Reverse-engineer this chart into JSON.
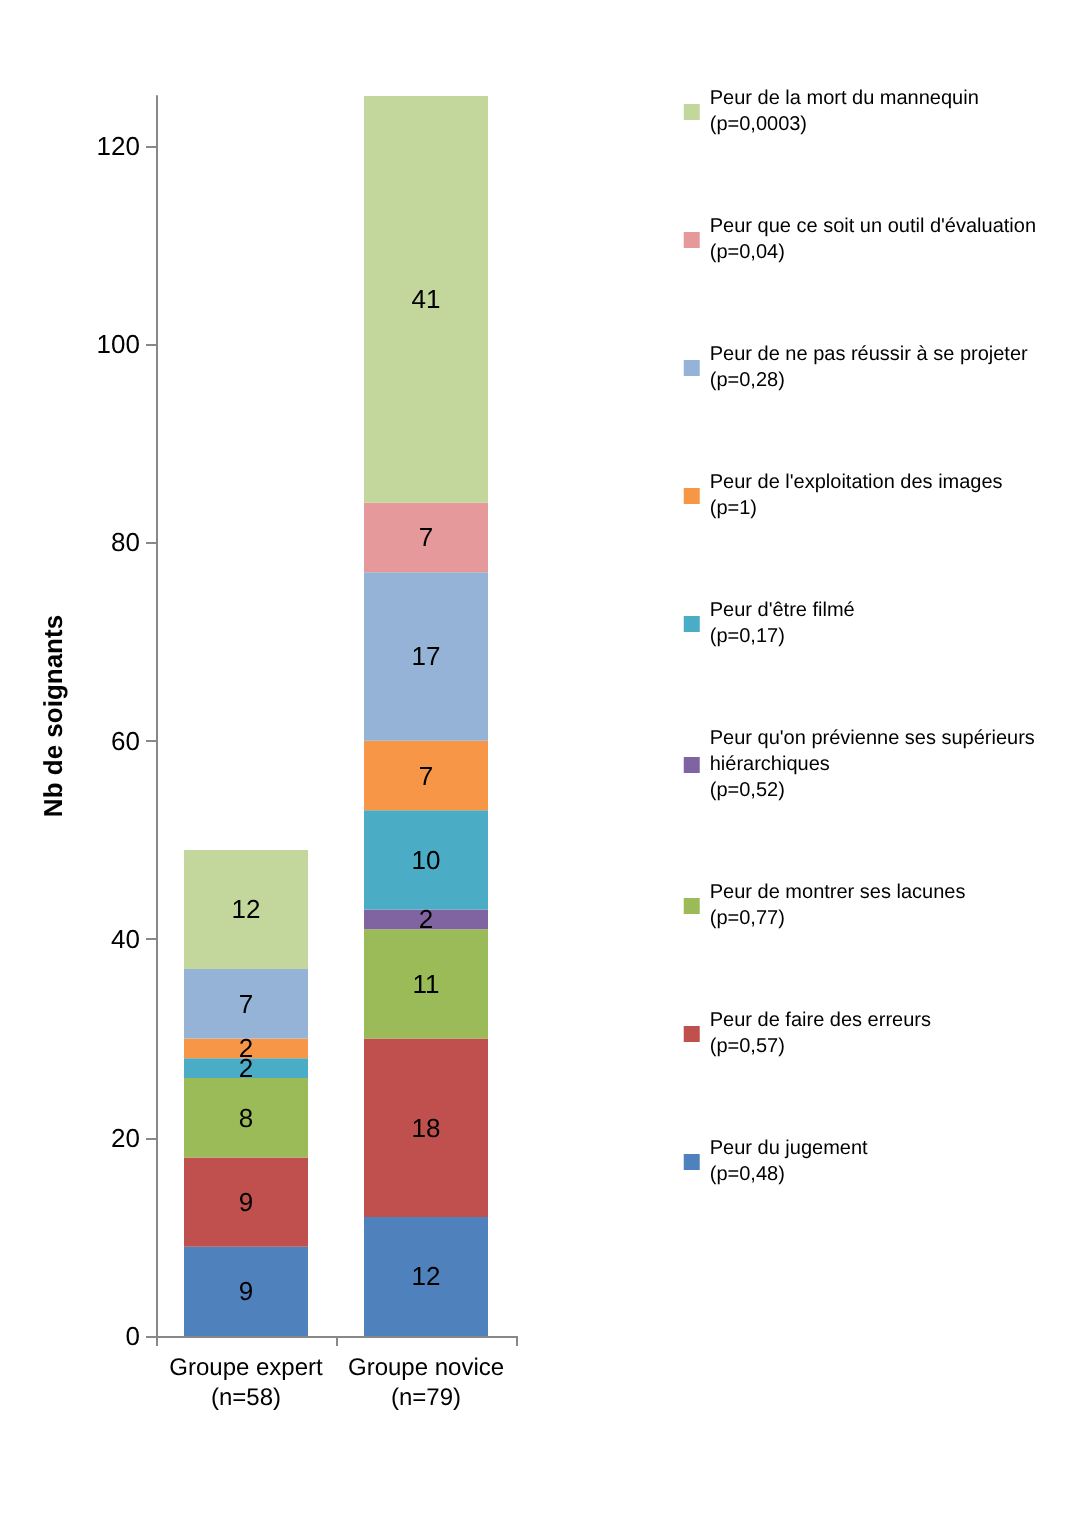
{
  "chart_data": {
    "type": "bar",
    "stacked": true,
    "ylabel": "Nb de soignants",
    "categories": [
      "Groupe expert\n(n=58)",
      "Groupe novice\n(n=79)"
    ],
    "series": [
      {
        "name": "Peur du jugement\n(p=0,48)",
        "color": "#4f81bd",
        "values": [
          9,
          12
        ]
      },
      {
        "name": "Peur de faire des erreurs\n(p=0,57)",
        "color": "#c0504d",
        "values": [
          9,
          18
        ]
      },
      {
        "name": "Peur de montrer ses lacunes\n(p=0,77)",
        "color": "#9bbb59",
        "values": [
          8,
          11
        ]
      },
      {
        "name": "Peur qu'on prévienne ses supérieurs\nhiérarchiques\n(p=0,52)",
        "color": "#8064a2",
        "values": [
          null,
          2
        ]
      },
      {
        "name": "Peur d'être filmé\n(p=0,17)",
        "color": "#4bacc6",
        "values": [
          2,
          10
        ]
      },
      {
        "name": "Peur de l'exploitation des images\n(p=1)",
        "color": "#f79646",
        "values": [
          2,
          7
        ]
      },
      {
        "name": "Peur de ne pas réussir à se projeter\n(p=0,28)",
        "color": "#95b3d7",
        "values": [
          7,
          17
        ]
      },
      {
        "name": "Peur que ce soit un outil d'évaluation\n(p=0,04)",
        "color": "#e6999a",
        "values": [
          null,
          7
        ]
      },
      {
        "name": "Peur de la mort du mannequin\n(p=0,0003)",
        "color": "#c3d69b",
        "values": [
          12,
          41
        ]
      }
    ],
    "ylim": [
      0,
      125
    ],
    "yticks": [
      0,
      20,
      40,
      60,
      80,
      100,
      120
    ],
    "data_labels": true,
    "legend": "right",
    "grid": false
  }
}
